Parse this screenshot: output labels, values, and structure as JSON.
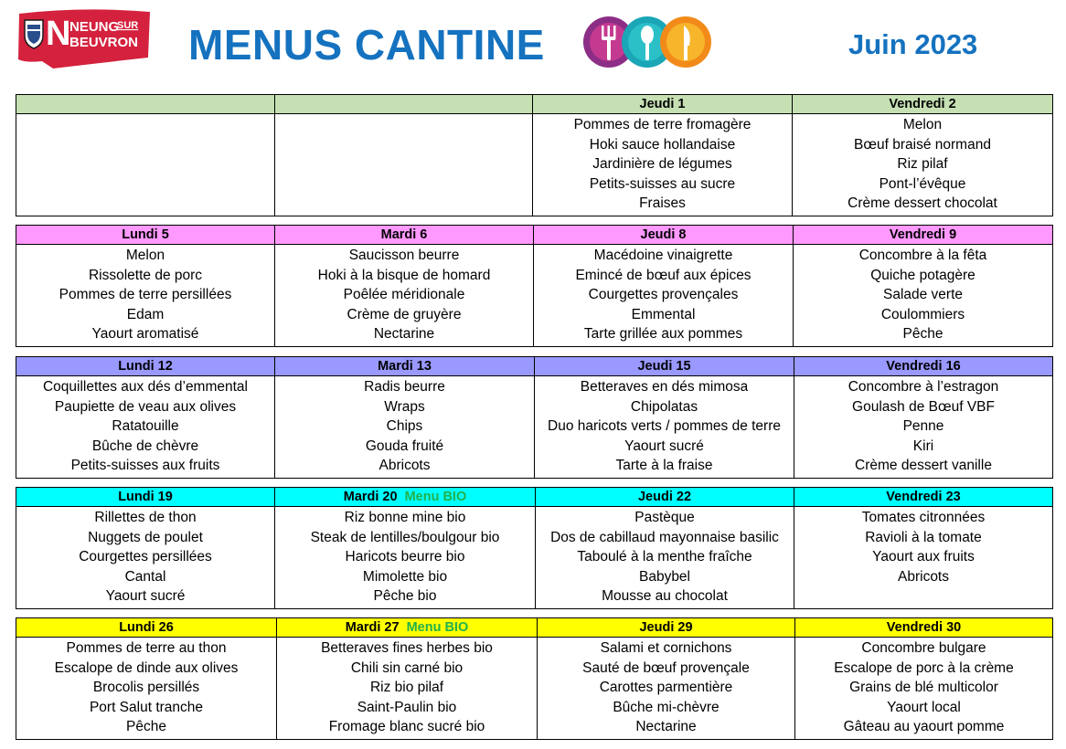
{
  "header": {
    "logo_line1": "NEUNG",
    "logo_sur": "SUR",
    "logo_line2": "BEUVRON",
    "title": "MENUS CANTINE",
    "month": "Juin 2023"
  },
  "colors": {
    "title": "#1572bf",
    "bio": "#22b14c",
    "week1": "#c6e0b4",
    "week2": "#ff99ff",
    "week3": "#9999ff",
    "week4": "#00ffff",
    "week5": "#ffff00"
  },
  "weeks": [
    {
      "days": [
        {
          "label": "",
          "bio": "",
          "dishes": [
            "",
            "",
            "",
            "",
            ""
          ]
        },
        {
          "label": "",
          "bio": "",
          "dishes": [
            "",
            "",
            "",
            "",
            ""
          ]
        },
        {
          "label": "Jeudi 1",
          "bio": "",
          "dishes": [
            "Pommes de terre fromagère",
            "Hoki sauce hollandaise",
            "Jardinière de légumes",
            "Petits-suisses au sucre",
            "Fraises"
          ]
        },
        {
          "label": "Vendredi 2",
          "bio": "",
          "dishes": [
            "Melon",
            "Bœuf braisé normand",
            "Riz pilaf",
            "Pont-l’évêque",
            "Crème dessert chocolat"
          ]
        }
      ]
    },
    {
      "days": [
        {
          "label": "Lundi 5",
          "bio": "",
          "dishes": [
            "Melon",
            "Rissolette de porc",
            "Pommes de terre persillées",
            "Edam",
            "Yaourt aromatisé"
          ]
        },
        {
          "label": "Mardi 6",
          "bio": "",
          "dishes": [
            "Saucisson beurre",
            "Hoki à la bisque de homard",
            "Poêlée méridionale",
            "Crème de gruyère",
            "Nectarine"
          ]
        },
        {
          "label": "Jeudi 8",
          "bio": "",
          "dishes": [
            "Macédoine vinaigrette",
            "Emincé de bœuf aux épices",
            "Courgettes provençales",
            "Emmental",
            "Tarte grillée aux pommes"
          ]
        },
        {
          "label": "Vendredi 9",
          "bio": "",
          "dishes": [
            "Concombre à la fêta",
            "Quiche potagère",
            "Salade verte",
            "Coulommiers",
            "Pêche"
          ]
        }
      ]
    },
    {
      "days": [
        {
          "label": "Lundi 12",
          "bio": "",
          "dishes": [
            "Coquillettes aux dés d’emmental",
            "Paupiette de veau aux olives",
            "Ratatouille",
            "Bûche de chèvre",
            "Petits-suisses aux fruits"
          ]
        },
        {
          "label": "Mardi 13",
          "bio": "",
          "dishes": [
            "Radis beurre",
            "Wraps",
            "Chips",
            "Gouda fruité",
            "Abricots"
          ]
        },
        {
          "label": "Jeudi 15",
          "bio": "",
          "dishes": [
            "Betteraves en dés mimosa",
            "Chipolatas",
            "Duo haricots verts / pommes de terre",
            "Yaourt sucré",
            "Tarte à la fraise"
          ]
        },
        {
          "label": "Vendredi 16",
          "bio": "",
          "dishes": [
            "Concombre à l’estragon",
            "Goulash de Bœuf VBF",
            "Penne",
            "Kiri",
            "Crème dessert vanille"
          ]
        }
      ]
    },
    {
      "days": [
        {
          "label": "Lundi 19",
          "bio": "",
          "dishes": [
            "Rillettes de thon",
            "Nuggets de poulet",
            "Courgettes persillées",
            "Cantal",
            "Yaourt sucré"
          ]
        },
        {
          "label": "Mardi 20",
          "bio": "Menu BIO",
          "dishes": [
            "Riz bonne mine bio",
            "Steak de lentilles/boulgour bio",
            "Haricots beurre bio",
            "Mimolette bio",
            "Pêche bio"
          ]
        },
        {
          "label": "Jeudi 22",
          "bio": "",
          "dishes": [
            "Pastèque",
            "Dos de cabillaud mayonnaise basilic",
            "Taboulé à la menthe fraîche",
            "Babybel",
            "Mousse au chocolat"
          ]
        },
        {
          "label": "Vendredi 23",
          "bio": "",
          "dishes": [
            "Tomates citronnées",
            "Ravioli à la tomate",
            "Yaourt aux fruits",
            "Abricots",
            ""
          ]
        }
      ]
    },
    {
      "days": [
        {
          "label": "Lundi 26",
          "bio": "",
          "dishes": [
            "Pommes de terre au thon",
            "Escalope de dinde aux olives",
            "Brocolis persillés",
            "Port Salut tranche",
            "Pêche"
          ]
        },
        {
          "label": "Mardi 27",
          "bio": "Menu BIO",
          "dishes": [
            "Betteraves fines herbes bio",
            "Chili sin carné bio",
            "Riz bio pilaf",
            "Saint-Paulin bio",
            "Fromage blanc sucré bio"
          ]
        },
        {
          "label": "Jeudi 29",
          "bio": "",
          "dishes": [
            "Salami et cornichons",
            "Sauté de bœuf provençale",
            "Carottes parmentière",
            "Bûche mi-chèvre",
            "Nectarine"
          ]
        },
        {
          "label": "Vendredi 30",
          "bio": "",
          "dishes": [
            "Concombre bulgare",
            "Escalope de porc à la crème",
            "Grains de blé multicolor",
            "Yaourt local",
            "Gâteau au yaourt pomme"
          ]
        }
      ]
    }
  ]
}
